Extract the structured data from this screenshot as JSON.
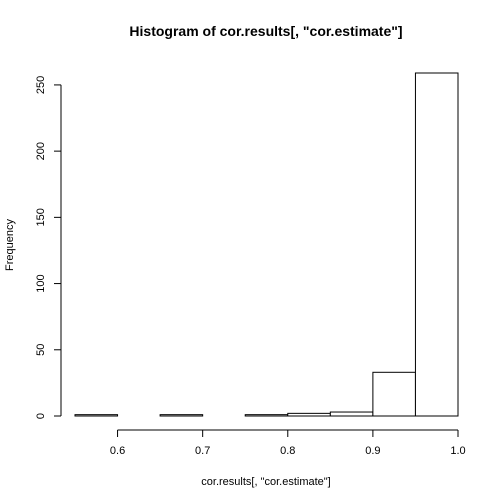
{
  "chart_data": {
    "type": "bar",
    "title": "Histogram of cor.results[, \"cor.estimate\"]",
    "xlabel": "cor.results[, \"cor.estimate\"]",
    "ylabel": "Frequency",
    "bins": [
      {
        "from": 0.55,
        "to": 0.6,
        "count": 1
      },
      {
        "from": 0.6,
        "to": 0.65,
        "count": 0
      },
      {
        "from": 0.65,
        "to": 0.7,
        "count": 1
      },
      {
        "from": 0.7,
        "to": 0.75,
        "count": 0
      },
      {
        "from": 0.75,
        "to": 0.8,
        "count": 1
      },
      {
        "from": 0.8,
        "to": 0.85,
        "count": 2
      },
      {
        "from": 0.85,
        "to": 0.9,
        "count": 3
      },
      {
        "from": 0.9,
        "to": 0.95,
        "count": 33
      },
      {
        "from": 0.95,
        "to": 1.0,
        "count": 259
      }
    ],
    "xlim": [
      0.55,
      1.0
    ],
    "ylim": [
      0,
      259
    ],
    "x_ticks": [
      {
        "value": 0.6,
        "label": "0.6"
      },
      {
        "value": 0.7,
        "label": "0.7"
      },
      {
        "value": 0.8,
        "label": "0.8"
      },
      {
        "value": 0.9,
        "label": "0.9"
      },
      {
        "value": 1.0,
        "label": "1.0"
      }
    ],
    "y_ticks": [
      {
        "value": 0,
        "label": "0"
      },
      {
        "value": 50,
        "label": "50"
      },
      {
        "value": 100,
        "label": "100"
      },
      {
        "value": 150,
        "label": "150"
      },
      {
        "value": 200,
        "label": "200"
      },
      {
        "value": 250,
        "label": "250"
      }
    ],
    "grid": false,
    "bar_fill": "#ffffff",
    "bar_stroke": "#000000"
  }
}
